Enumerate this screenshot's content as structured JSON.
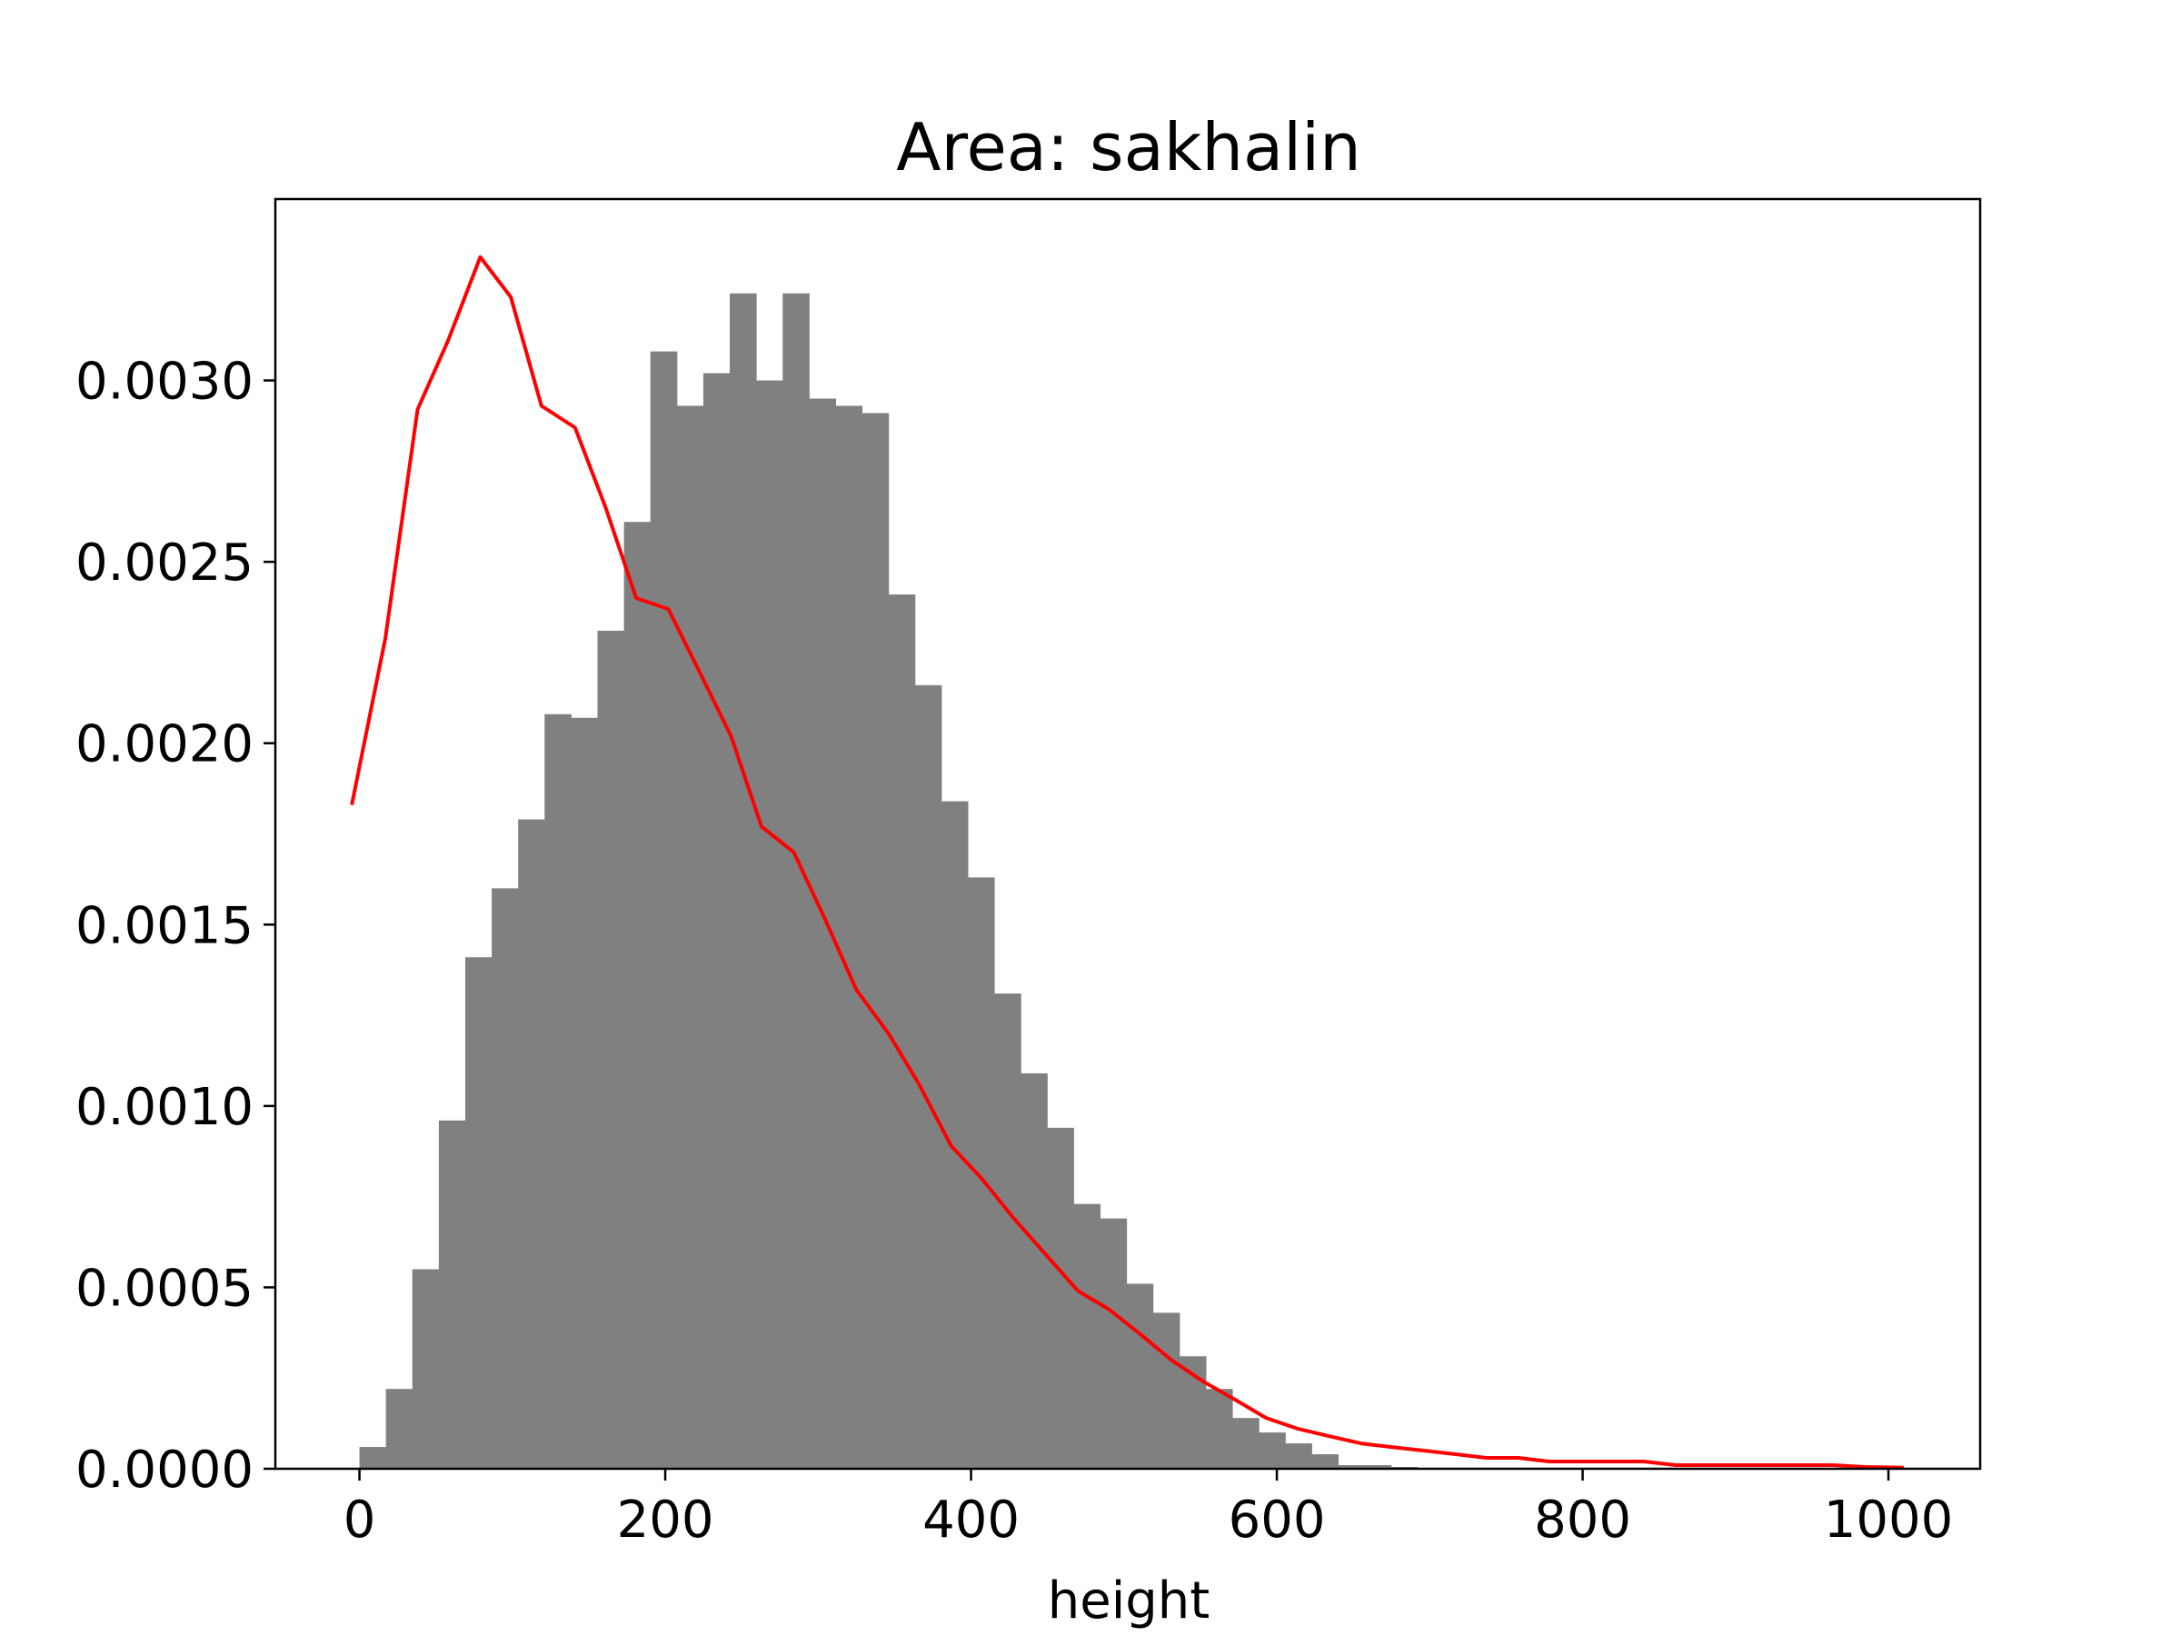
{
  "chart_data": {
    "type": "bar",
    "title": "Area: sakhalin",
    "xlabel": "height",
    "ylabel": "",
    "xlim": [
      -55,
      1060
    ],
    "ylim": [
      0,
      0.0035
    ],
    "grid": false,
    "legend": "none",
    "x_ticks": [
      {
        "value": 0,
        "label": "0"
      },
      {
        "value": 200,
        "label": "200"
      },
      {
        "value": 400,
        "label": "400"
      },
      {
        "value": 600,
        "label": "600"
      },
      {
        "value": 800,
        "label": "800"
      },
      {
        "value": 1000,
        "label": "1000"
      }
    ],
    "y_ticks": [
      {
        "value": 0.0,
        "label": "0.0000"
      },
      {
        "value": 0.0005,
        "label": "0.0005"
      },
      {
        "value": 0.001,
        "label": "0.0010"
      },
      {
        "value": 0.0015,
        "label": "0.0015"
      },
      {
        "value": 0.002,
        "label": "0.0020"
      },
      {
        "value": 0.0025,
        "label": "0.0025"
      },
      {
        "value": 0.003,
        "label": "0.0030"
      }
    ],
    "histogram": {
      "color": "#808080",
      "bin_edges": [
        0,
        17.3,
        34.6,
        51.9,
        69.2,
        86.5,
        103.8,
        121.1,
        138.4,
        155.7,
        173.0,
        190.3,
        207.6,
        224.9,
        242.2,
        259.5,
        276.8,
        294.1,
        311.4,
        328.7,
        346.0,
        363.3,
        380.6,
        397.9,
        415.2,
        432.5,
        449.8,
        467.1,
        484.4,
        501.7,
        519.0,
        536.3,
        553.6,
        570.9,
        588.2,
        605.5,
        622.8,
        640.1,
        657.4,
        674.7,
        692.0
      ],
      "values": [
        6e-05,
        0.00022,
        0.00055,
        0.00096,
        0.00141,
        0.0016,
        0.00179,
        0.00208,
        0.00207,
        0.00231,
        0.00261,
        0.00308,
        0.00293,
        0.00302,
        0.00324,
        0.003,
        0.00324,
        0.00295,
        0.00293,
        0.00291,
        0.00241,
        0.00216,
        0.00184,
        0.00163,
        0.00131,
        0.00109,
        0.00094,
        0.00073,
        0.00069,
        0.00051,
        0.00043,
        0.00031,
        0.00022,
        0.00014,
        0.0001,
        7e-05,
        4e-05,
        1e-05,
        1e-05,
        5e-06
      ]
    },
    "series": [
      {
        "color": "#ff0000",
        "x": [
          -5,
          17,
          38,
          58,
          79,
          99,
          119,
          141,
          161,
          181,
          202,
          222,
          243,
          263,
          284,
          304,
          325,
          346,
          366,
          387,
          407,
          428,
          449,
          470,
          490,
          511,
          531,
          552,
          573,
          593,
          614,
          634,
          655,
          675,
          696,
          717,
          737,
          758,
          778,
          799,
          820,
          840,
          861,
          881,
          902,
          923,
          943,
          964,
          985,
          1010
        ],
        "values": [
          0.00183,
          0.00229,
          0.00292,
          0.00311,
          0.00334,
          0.00323,
          0.00293,
          0.00287,
          0.00265,
          0.0024,
          0.00237,
          0.0022,
          0.00202,
          0.00177,
          0.0017,
          0.00152,
          0.00132,
          0.0012,
          0.00106,
          0.00089,
          0.0008,
          0.00069,
          0.00059,
          0.00049,
          0.00044,
          0.00037,
          0.0003,
          0.00024,
          0.00019,
          0.00014,
          0.00011,
          9e-05,
          7e-05,
          6e-05,
          5e-05,
          4e-05,
          3e-05,
          3e-05,
          2e-05,
          2e-05,
          2e-05,
          2e-05,
          1e-05,
          1e-05,
          1e-05,
          1e-05,
          1e-05,
          1e-05,
          5e-06,
          3e-06
        ]
      }
    ]
  }
}
